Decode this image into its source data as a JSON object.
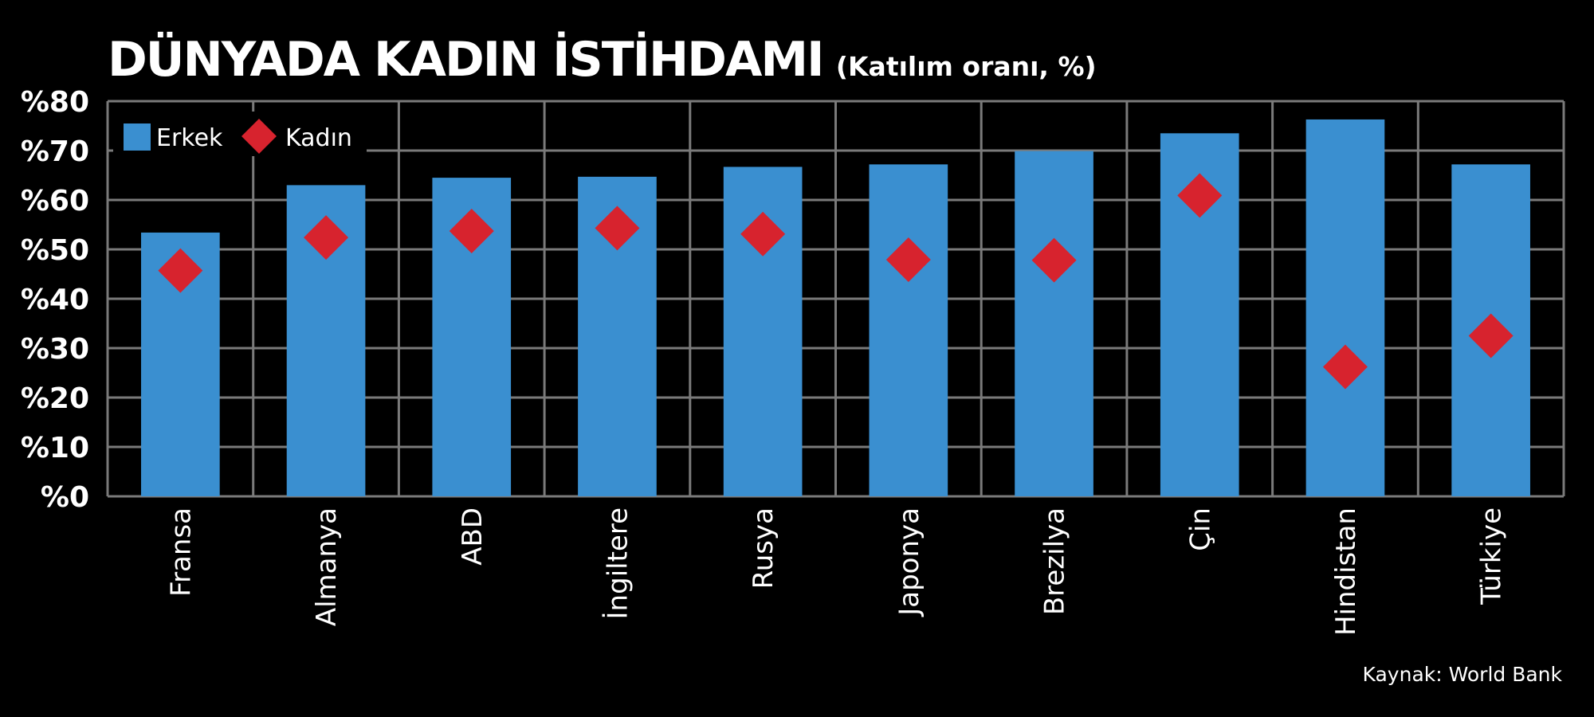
{
  "title": "DÜNYADA KADIN İSTİHDAMI",
  "subtitle": "(Katılım oranı, %)",
  "source": "Kaynak: World Bank",
  "colors": {
    "erkek": "#3a8fd0",
    "kadin": "#d7232e",
    "grid": "#7a7a7a",
    "background": "#000000"
  },
  "chart_data": {
    "type": "bar",
    "categories": [
      "Fransa",
      "Almanya",
      "ABD",
      "İngiltere",
      "Rusya",
      "Japonya",
      "Brezilya",
      "Çin",
      "Hindistan",
      "Türkiye"
    ],
    "series": [
      {
        "name": "Erkek",
        "kind": "bar",
        "values": [
          53.4,
          63.0,
          64.5,
          64.7,
          66.7,
          67.2,
          69.9,
          73.5,
          76.3,
          67.2
        ]
      },
      {
        "name": "Kadın",
        "kind": "marker-diamond",
        "values": [
          45.7,
          52.4,
          53.7,
          54.3,
          53.1,
          47.9,
          47.8,
          60.9,
          26.2,
          32.5
        ]
      }
    ],
    "yticks": [
      "%0",
      "%10",
      "%20",
      "%30",
      "%40",
      "%50",
      "%60",
      "%70",
      "%80"
    ],
    "ylim": [
      0,
      80
    ],
    "grid": true,
    "legend": "top-left"
  }
}
